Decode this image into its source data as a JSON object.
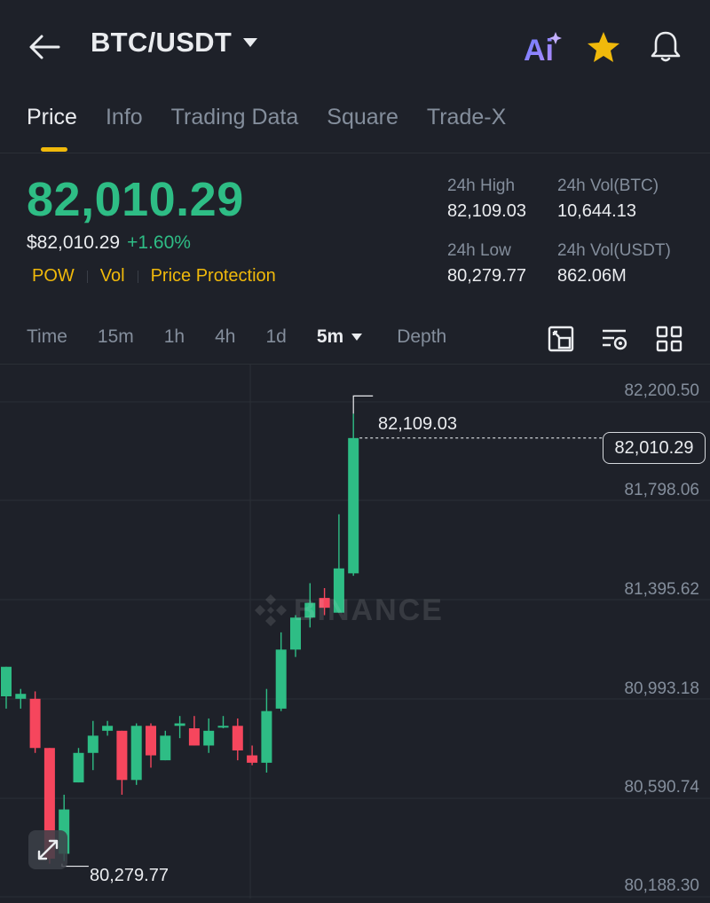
{
  "header": {
    "pair": "BTC/USDT",
    "ai_label": "Ai"
  },
  "tabs": [
    "Price",
    "Info",
    "Trading Data",
    "Square",
    "Trade-X"
  ],
  "price": {
    "last": "82,010.29",
    "fiat": "$82,010.29",
    "change_pct": "+1.60%"
  },
  "tags": [
    "POW",
    "Vol",
    "Price Protection"
  ],
  "stats": {
    "high_label": "24h High",
    "high_value": "82,109.03",
    "vol_btc_label": "24h Vol(BTC)",
    "vol_btc_value": "10,644.13",
    "low_label": "24h Low",
    "low_value": "80,279.77",
    "vol_usdt_label": "24h Vol(USDT)",
    "vol_usdt_value": "862.06M"
  },
  "intervals": [
    "Time",
    "15m",
    "1h",
    "4h",
    "1d"
  ],
  "selected_interval": "5m",
  "depth_label": "Depth",
  "watermark": "BINANCE",
  "colors": {
    "up": "#2ebd85",
    "down": "#f6465d",
    "accent": "#f0b90b"
  },
  "chart_data": {
    "type": "candlestick",
    "y_ticks": [
      "82,200.50",
      "81,798.06",
      "81,395.62",
      "80,993.18",
      "80,590.74",
      "80,188.30"
    ],
    "ylim": [
      80188.3,
      82200.5
    ],
    "last_price": "82,010.29",
    "high_marker": "82,109.03",
    "low_marker": "80,279.77",
    "candles": [
      {
        "o": 80960,
        "c": 81080,
        "h": 81080,
        "l": 80910
      },
      {
        "o": 80950,
        "c": 80970,
        "h": 80990,
        "l": 80910
      },
      {
        "o": 80950,
        "c": 80750,
        "h": 80980,
        "l": 80730
      },
      {
        "o": 80750,
        "c": 80300,
        "h": 80750,
        "l": 80280
      },
      {
        "o": 80320,
        "c": 80500,
        "h": 80560,
        "l": 80290
      },
      {
        "o": 80610,
        "c": 80730,
        "h": 80750,
        "l": 80610
      },
      {
        "o": 80730,
        "c": 80800,
        "h": 80860,
        "l": 80660
      },
      {
        "o": 80820,
        "c": 80840,
        "h": 80860,
        "l": 80800
      },
      {
        "o": 80820,
        "c": 80620,
        "h": 80820,
        "l": 80560
      },
      {
        "o": 80620,
        "c": 80840,
        "h": 80850,
        "l": 80600
      },
      {
        "o": 80840,
        "c": 80720,
        "h": 80850,
        "l": 80670
      },
      {
        "o": 80700,
        "c": 80800,
        "h": 80820,
        "l": 80700
      },
      {
        "o": 80840,
        "c": 80850,
        "h": 80880,
        "l": 80790
      },
      {
        "o": 80830,
        "c": 80760,
        "h": 80880,
        "l": 80760
      },
      {
        "o": 80760,
        "c": 80820,
        "h": 80870,
        "l": 80730
      },
      {
        "o": 80840,
        "c": 80840,
        "h": 80880,
        "l": 80830
      },
      {
        "o": 80840,
        "c": 80740,
        "h": 80870,
        "l": 80700
      },
      {
        "o": 80720,
        "c": 80690,
        "h": 80760,
        "l": 80680
      },
      {
        "o": 80690,
        "c": 80900,
        "h": 80990,
        "l": 80650
      },
      {
        "o": 80910,
        "c": 81150,
        "h": 81220,
        "l": 80900
      },
      {
        "o": 81150,
        "c": 81280,
        "h": 81290,
        "l": 81120
      },
      {
        "o": 81280,
        "c": 81340,
        "h": 81420,
        "l": 81240
      },
      {
        "o": 81360,
        "c": 81320,
        "h": 81400,
        "l": 81290
      },
      {
        "o": 81300,
        "c": 81480,
        "h": 81700,
        "l": 81300
      },
      {
        "o": 81460,
        "c": 82010,
        "h": 82109,
        "l": 81450
      }
    ]
  }
}
